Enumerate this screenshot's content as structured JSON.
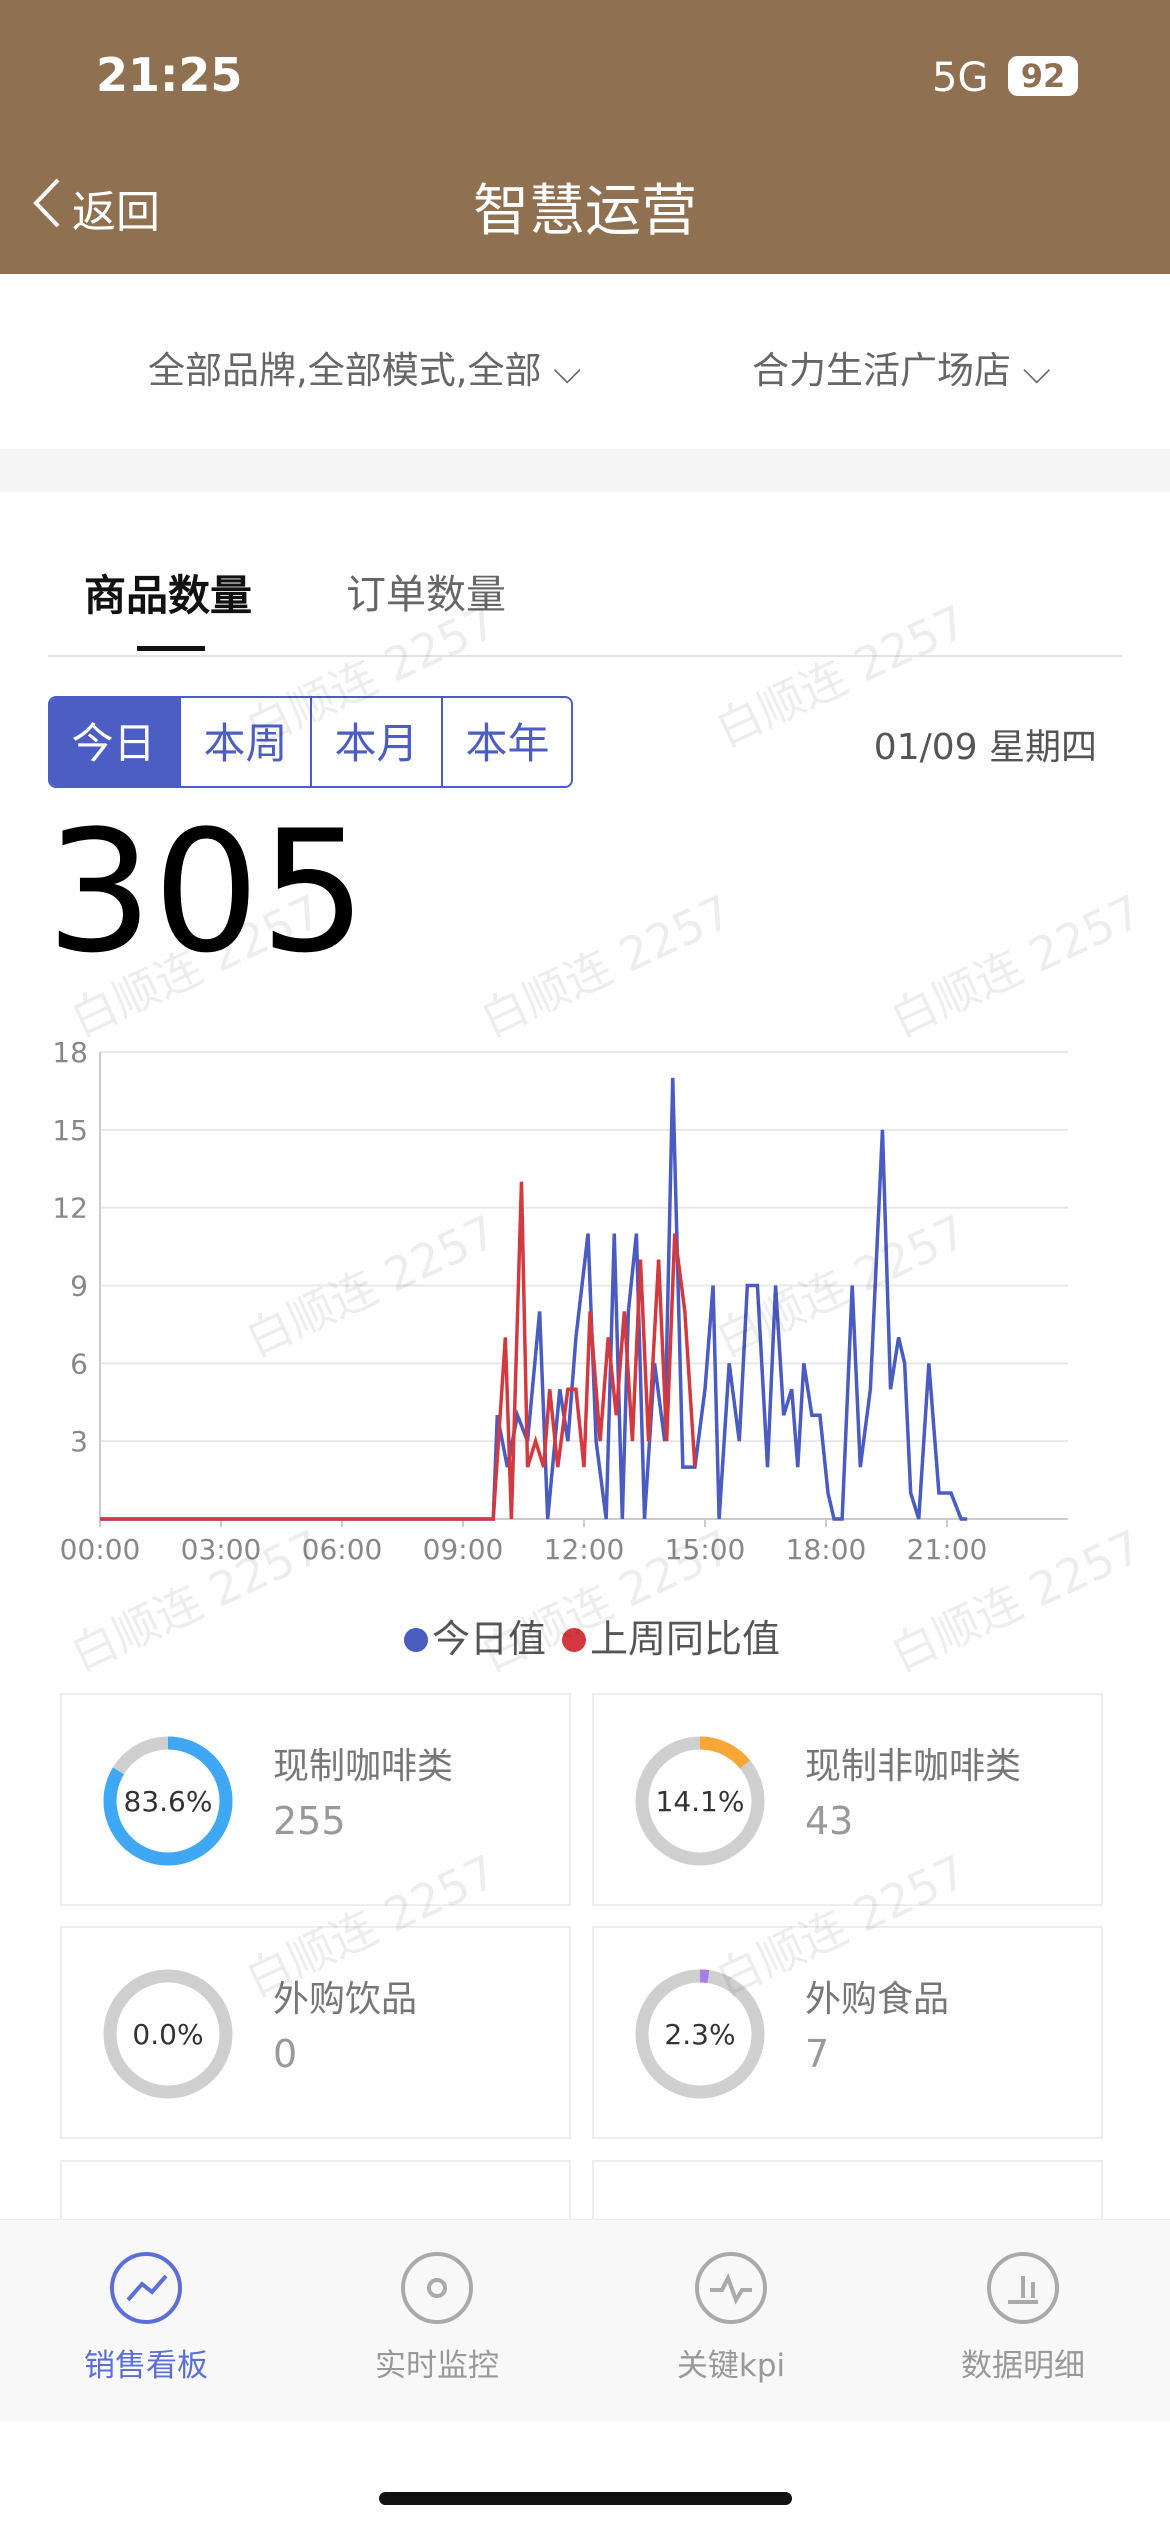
{
  "status_bar": {
    "time": "21:25",
    "network": "5G",
    "battery": "92"
  },
  "header": {
    "back": "返回",
    "title": "智慧运营"
  },
  "filters": [
    "全部品牌,全部模式,全部",
    "合力生活广场店"
  ],
  "tabs": [
    "商品数量",
    "订单数量"
  ],
  "periods": [
    "今日",
    "本周",
    "本月",
    "本年"
  ],
  "date": "01/09 星期四",
  "total": 305,
  "watermark": "白顺连 2257",
  "chart_data": {
    "type": "line",
    "xlim": [
      0,
      24
    ],
    "xticks": [
      {
        "value": 0,
        "label": "00:00"
      },
      {
        "value": 3,
        "label": "03:00"
      },
      {
        "value": 6,
        "label": "06:00"
      },
      {
        "value": 9,
        "label": "09:00"
      },
      {
        "value": 12,
        "label": "12:00"
      },
      {
        "value": 15,
        "label": "15:00"
      },
      {
        "value": 18,
        "label": "18:00"
      },
      {
        "value": 21,
        "label": "21:00"
      }
    ],
    "ylim": [
      0,
      18
    ],
    "yticks": [
      3,
      6,
      9,
      12,
      15,
      18
    ],
    "grid": true,
    "legend": "bottom",
    "series": [
      {
        "name": "今日值",
        "color": "#4a5bc1",
        "x": [
          0,
          9.75,
          9.85,
          10.1,
          10.35,
          10.6,
          10.9,
          11.1,
          11.4,
          11.6,
          11.8,
          12.1,
          12.3,
          12.55,
          12.75,
          12.95,
          13.1,
          13.3,
          13.5,
          13.75,
          14,
          14.2,
          14.45,
          14.75,
          15,
          15.2,
          15.35,
          15.6,
          15.85,
          16.05,
          16.3,
          16.55,
          16.75,
          16.95,
          17.15,
          17.3,
          17.45,
          17.65,
          17.85,
          18.05,
          18.2,
          18.4,
          18.65,
          18.85,
          19.1,
          19.4,
          19.6,
          19.8,
          19.95,
          20.1,
          20.3,
          20.55,
          20.8,
          21.1,
          21.35,
          21.5
        ],
        "values": [
          0,
          0,
          4,
          2,
          4,
          3,
          8,
          0,
          5,
          3,
          7,
          11,
          3,
          0,
          11,
          0,
          8,
          11,
          0,
          6,
          3,
          17,
          2,
          2,
          5,
          9,
          0,
          6,
          3,
          9,
          9,
          2,
          9,
          4,
          5,
          2,
          6,
          4,
          4,
          1,
          0,
          0,
          9,
          2,
          5,
          15,
          5,
          7,
          6,
          1,
          0,
          6,
          1,
          1,
          0,
          0
        ]
      },
      {
        "name": "上周同比值",
        "color": "#d33a40",
        "x": [
          0,
          9.75,
          10.05,
          10.2,
          10.45,
          10.6,
          10.8,
          11,
          11.15,
          11.35,
          11.6,
          11.8,
          12,
          12.15,
          12.4,
          12.6,
          12.8,
          13,
          13.2,
          13.4,
          13.6,
          13.85,
          14.05,
          14.25,
          14.5,
          14.75
        ],
        "values": [
          0,
          0,
          7,
          0,
          13,
          2,
          3,
          2,
          5,
          2,
          5,
          5,
          2,
          8,
          3,
          7,
          4,
          8,
          3,
          10,
          3,
          10,
          3,
          11,
          8,
          2
        ]
      }
    ]
  },
  "cards": [
    {
      "name": "现制咖啡类",
      "percent": 83.6,
      "percent_label": "83.6%",
      "count": 255,
      "color": "#3ea8f4"
    },
    {
      "name": "现制非咖啡类",
      "percent": 14.1,
      "percent_label": "14.1%",
      "count": 43,
      "color": "#f6a735"
    },
    {
      "name": "外购饮品",
      "percent": 0.0,
      "percent_label": "0.0%",
      "count": 0,
      "color": "#3ea8f4"
    },
    {
      "name": "外购食品",
      "percent": 2.3,
      "percent_label": "2.3%",
      "count": 7,
      "color": "#a77de8"
    }
  ],
  "nav": [
    "销售看板",
    "实时监控",
    "关键kpi",
    "数据明细"
  ]
}
